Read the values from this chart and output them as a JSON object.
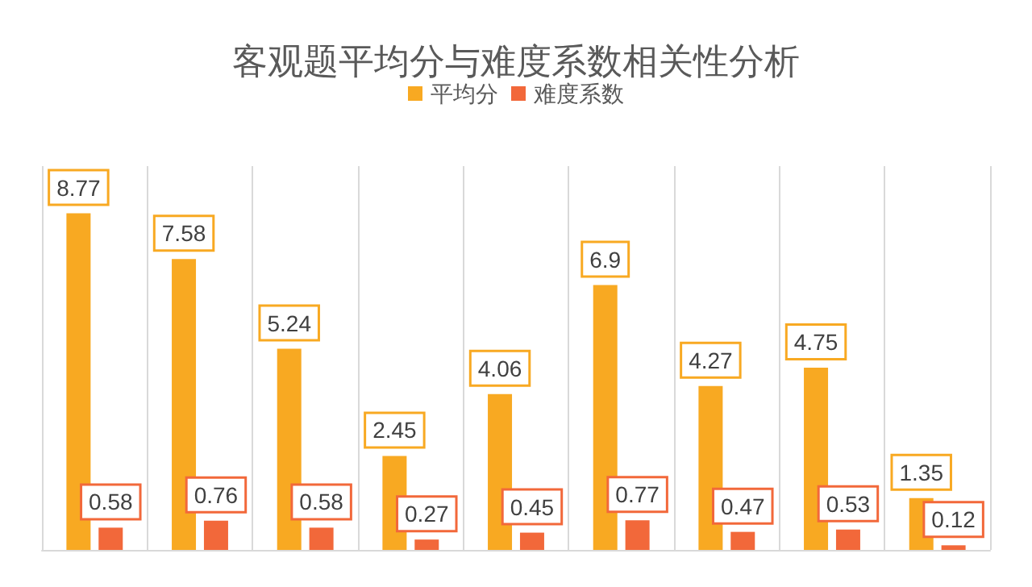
{
  "chart_data": {
    "type": "bar",
    "title": "客观题平均分与难度系数相关性分析",
    "categories": [
      null,
      null,
      null,
      null,
      null,
      null,
      null,
      null,
      null
    ],
    "series": [
      {
        "name": "平均分",
        "color": "#f8a922",
        "values": [
          8.77,
          7.58,
          5.24,
          2.45,
          4.06,
          6.9,
          4.27,
          4.75,
          1.35
        ]
      },
      {
        "name": "难度系数",
        "color": "#f2683a",
        "values": [
          0.58,
          0.76,
          0.58,
          0.27,
          0.45,
          0.77,
          0.47,
          0.53,
          0.12
        ]
      }
    ],
    "data_labels": true,
    "legend": "top",
    "grid": "x"
  }
}
